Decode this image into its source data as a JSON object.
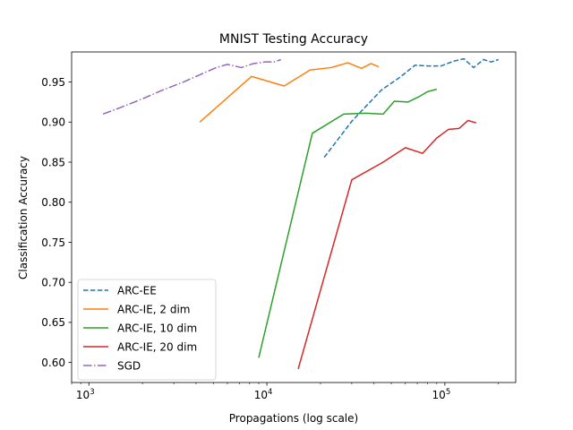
{
  "chart_data": {
    "type": "line",
    "title": "MNIST Testing Accuracy",
    "xlabel": "Propagations (log scale)",
    "ylabel": "Classification Accuracy",
    "xscale": "log",
    "xlim": [
      800,
      250000
    ],
    "ylim": [
      0.575,
      0.9875
    ],
    "grid": false,
    "legend_position": "lower-left",
    "x_tick_labels": [
      "10^3",
      "10^4",
      "10^5"
    ],
    "x_ticks": [
      1000,
      10000,
      100000
    ],
    "y_ticks": [
      0.6,
      0.65,
      0.7,
      0.75,
      0.8,
      0.85,
      0.9,
      0.95
    ],
    "y_tick_labels": [
      "0.60",
      "0.65",
      "0.70",
      "0.75",
      "0.80",
      "0.85",
      "0.90",
      "0.95"
    ],
    "series": [
      {
        "name": "ARC-EE",
        "color": "#1f77b4",
        "linestyle": "dashed",
        "x": [
          21000,
          30000,
          44000,
          56000,
          68000,
          80000,
          95000,
          112000,
          128000,
          145000,
          165000,
          182000,
          200000
        ],
        "y": [
          0.856,
          0.901,
          0.94,
          0.956,
          0.971,
          0.97,
          0.97,
          0.976,
          0.979,
          0.968,
          0.978,
          0.975,
          0.978
        ]
      },
      {
        "name": "ARC-IE, 2 dim",
        "color": "#ff7f0e",
        "linestyle": "solid",
        "x": [
          4200,
          8200,
          12500,
          17500,
          23000,
          28500,
          34000,
          38500,
          42500
        ],
        "y": [
          0.9,
          0.957,
          0.945,
          0.965,
          0.968,
          0.974,
          0.967,
          0.973,
          0.969
        ]
      },
      {
        "name": "ARC-IE, 10 dim",
        "color": "#2ca02c",
        "linestyle": "solid",
        "x": [
          9000,
          18000,
          27000,
          36000,
          45000,
          52000,
          62000,
          72000,
          80000,
          90000
        ],
        "y": [
          0.606,
          0.886,
          0.91,
          0.911,
          0.91,
          0.926,
          0.925,
          0.932,
          0.938,
          0.941
        ]
      },
      {
        "name": "ARC-IE, 20 dim",
        "color": "#d62728",
        "linestyle": "solid",
        "x": [
          15000,
          30000,
          45000,
          60000,
          75000,
          90000,
          105000,
          120000,
          135000,
          150000
        ],
        "y": [
          0.592,
          0.828,
          0.85,
          0.868,
          0.861,
          0.88,
          0.891,
          0.892,
          0.902,
          0.899
        ]
      },
      {
        "name": "SGD",
        "color": "#9467bd",
        "linestyle": "dashdot",
        "x": [
          1200,
          1500,
          2000,
          2600,
          3400,
          4400,
          5200,
          6000,
          7200,
          8400,
          9800,
          11000,
          12000
        ],
        "y": [
          0.91,
          0.918,
          0.929,
          0.94,
          0.95,
          0.961,
          0.968,
          0.972,
          0.968,
          0.973,
          0.975,
          0.975,
          0.978
        ]
      }
    ]
  }
}
